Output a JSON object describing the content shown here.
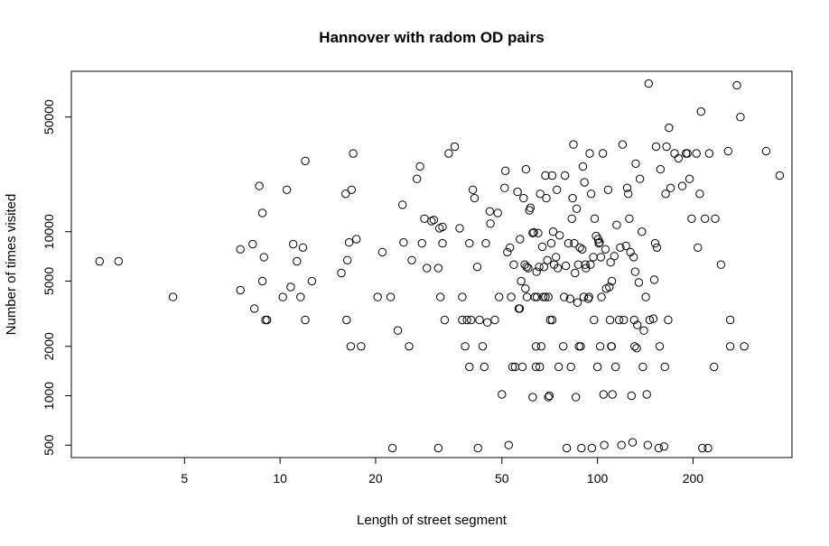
{
  "chart_data": {
    "type": "scatter",
    "title": "Hannover with radom OD pairs",
    "xlabel": "Length of street segment",
    "ylabel": "Number of times visited",
    "x_scale": "log",
    "y_scale": "log",
    "xlim": [
      2.2,
      410
    ],
    "ylim": [
      420,
      95000
    ],
    "x_ticks": [
      5,
      10,
      20,
      50,
      100,
      200
    ],
    "y_ticks": [
      500,
      1000,
      2000,
      5000,
      10000,
      50000
    ],
    "grid": false,
    "legend": "none",
    "marker": "open-circle",
    "points": [
      [
        2.7,
        6600
      ],
      [
        3.1,
        6600
      ],
      [
        4.6,
        4000
      ],
      [
        7.5,
        7800
      ],
      [
        7.5,
        4400
      ],
      [
        8.2,
        8400
      ],
      [
        8.3,
        3400
      ],
      [
        8.6,
        19000
      ],
      [
        8.8,
        5000
      ],
      [
        8.8,
        13000
      ],
      [
        8.9,
        7000
      ],
      [
        9.0,
        2900
      ],
      [
        9.1,
        2900
      ],
      [
        10.2,
        4000
      ],
      [
        10.5,
        18000
      ],
      [
        10.8,
        4600
      ],
      [
        11.0,
        8400
      ],
      [
        11.3,
        6600
      ],
      [
        11.6,
        4000
      ],
      [
        11.8,
        8000
      ],
      [
        12.0,
        2900
      ],
      [
        12.0,
        27000
      ],
      [
        12.6,
        5000
      ],
      [
        15.6,
        5600
      ],
      [
        16.1,
        17000
      ],
      [
        16.2,
        2900
      ],
      [
        16.3,
        6700
      ],
      [
        16.5,
        8600
      ],
      [
        16.7,
        2000
      ],
      [
        16.8,
        18000
      ],
      [
        17.0,
        30000
      ],
      [
        17.4,
        9000
      ],
      [
        18.0,
        2000
      ],
      [
        20.3,
        4000
      ],
      [
        21.0,
        7500
      ],
      [
        22.3,
        4000
      ],
      [
        22.6,
        480
      ],
      [
        23.5,
        2500
      ],
      [
        24.3,
        14600
      ],
      [
        24.5,
        8600
      ],
      [
        25.5,
        2000
      ],
      [
        26.0,
        6700
      ],
      [
        27.0,
        21000
      ],
      [
        27.6,
        25000
      ],
      [
        28.0,
        8500
      ],
      [
        28.5,
        12000
      ],
      [
        29.0,
        6000
      ],
      [
        30.0,
        11600
      ],
      [
        30.5,
        11800
      ],
      [
        31.5,
        6000
      ],
      [
        31.8,
        10500
      ],
      [
        31.5,
        480
      ],
      [
        32.0,
        4000
      ],
      [
        32.5,
        8500
      ],
      [
        32.5,
        10700
      ],
      [
        33.0,
        2900
      ],
      [
        34.0,
        30000
      ],
      [
        35.5,
        33000
      ],
      [
        36.8,
        10500
      ],
      [
        37.5,
        4000
      ],
      [
        37.5,
        2900
      ],
      [
        38.3,
        2000
      ],
      [
        38.8,
        2900
      ],
      [
        39.5,
        8500
      ],
      [
        39.5,
        1500
      ],
      [
        40.0,
        2900
      ],
      [
        40.5,
        18000
      ],
      [
        41.0,
        16000
      ],
      [
        41.8,
        6100
      ],
      [
        42.0,
        480
      ],
      [
        42.5,
        2900
      ],
      [
        43.5,
        2000
      ],
      [
        44.0,
        1500
      ],
      [
        44.5,
        8500
      ],
      [
        45.0,
        2800
      ],
      [
        45.8,
        13300
      ],
      [
        46.0,
        11200
      ],
      [
        47.5,
        2900
      ],
      [
        48.5,
        13000
      ],
      [
        49.0,
        4000
      ],
      [
        50.0,
        1020
      ],
      [
        51.0,
        18500
      ],
      [
        51.3,
        23500
      ],
      [
        52.0,
        7500
      ],
      [
        52.5,
        500
      ],
      [
        53.0,
        8000
      ],
      [
        53.5,
        4000
      ],
      [
        54.0,
        1500
      ],
      [
        54.5,
        6300
      ],
      [
        55.0,
        1500
      ],
      [
        56.0,
        17500
      ],
      [
        56.5,
        3400
      ],
      [
        56.9,
        3400
      ],
      [
        57.0,
        9000
      ],
      [
        57.5,
        5000
      ],
      [
        58.0,
        1500
      ],
      [
        58.5,
        16000
      ],
      [
        59.0,
        6300
      ],
      [
        59.3,
        4500
      ],
      [
        59.5,
        24000
      ],
      [
        59.8,
        6100
      ],
      [
        60.0,
        4000
      ],
      [
        60.5,
        6000
      ],
      [
        61.0,
        13500
      ],
      [
        61.5,
        14000
      ],
      [
        62.5,
        9800
      ],
      [
        62.5,
        980
      ],
      [
        63.0,
        9900
      ],
      [
        63.5,
        4000
      ],
      [
        64.0,
        2000
      ],
      [
        64.0,
        1500
      ],
      [
        64.3,
        5700
      ],
      [
        64.5,
        4000
      ],
      [
        65.0,
        9800
      ],
      [
        65.5,
        6100
      ],
      [
        65.8,
        1500
      ],
      [
        66.0,
        17000
      ],
      [
        66.5,
        2000
      ],
      [
        67.0,
        8100
      ],
      [
        67.5,
        4000
      ],
      [
        67.8,
        6100
      ],
      [
        68.5,
        4000
      ],
      [
        68.5,
        22000
      ],
      [
        69.0,
        16000
      ],
      [
        69.5,
        6700
      ],
      [
        70.0,
        4000
      ],
      [
        70.0,
        980
      ],
      [
        70.5,
        1000
      ],
      [
        71.0,
        2900
      ],
      [
        71.5,
        8500
      ],
      [
        72.0,
        22000
      ],
      [
        72.0,
        2900
      ],
      [
        72.5,
        10000
      ],
      [
        73.0,
        6300
      ],
      [
        74.0,
        7000
      ],
      [
        74.5,
        18000
      ],
      [
        75.0,
        6000
      ],
      [
        75.5,
        1500
      ],
      [
        76.0,
        9500
      ],
      [
        78.0,
        2000
      ],
      [
        78.5,
        4000
      ],
      [
        79.0,
        22000
      ],
      [
        79.5,
        6200
      ],
      [
        80.0,
        480
      ],
      [
        81.0,
        8500
      ],
      [
        82.0,
        3900
      ],
      [
        82.5,
        1500
      ],
      [
        83.0,
        12000
      ],
      [
        83.5,
        16000
      ],
      [
        84.0,
        34000
      ],
      [
        84.5,
        8500
      ],
      [
        85.0,
        5600
      ],
      [
        85.5,
        980
      ],
      [
        86.0,
        13800
      ],
      [
        86.5,
        3700
      ],
      [
        87.0,
        6300
      ],
      [
        87.5,
        2000
      ],
      [
        88.0,
        8000
      ],
      [
        88.5,
        2000
      ],
      [
        89.0,
        480
      ],
      [
        89.5,
        7800
      ],
      [
        90.0,
        25000
      ],
      [
        90.5,
        4000
      ],
      [
        91.0,
        20000
      ],
      [
        91.5,
        6300
      ],
      [
        92.0,
        6000
      ],
      [
        93.5,
        3900
      ],
      [
        94.0,
        4000
      ],
      [
        94.5,
        30000
      ],
      [
        95.0,
        6300
      ],
      [
        95.5,
        17000
      ],
      [
        96.0,
        480
      ],
      [
        97.0,
        7000
      ],
      [
        97.5,
        2900
      ],
      [
        98.0,
        12000
      ],
      [
        99.0,
        9400
      ],
      [
        100.0,
        1500
      ],
      [
        100.5,
        9000
      ],
      [
        101.0,
        8500
      ],
      [
        101.5,
        8600
      ],
      [
        102.0,
        2000
      ],
      [
        102.5,
        7000
      ],
      [
        103.0,
        4000
      ],
      [
        104.0,
        30000
      ],
      [
        104.5,
        1020
      ],
      [
        105.0,
        500
      ],
      [
        106.0,
        7800
      ],
      [
        106.5,
        4500
      ],
      [
        108.0,
        18000
      ],
      [
        109.0,
        4600
      ],
      [
        109.5,
        2900
      ],
      [
        110.0,
        6500
      ],
      [
        110.5,
        2000
      ],
      [
        110.8,
        2000
      ],
      [
        111.0,
        5000
      ],
      [
        111.5,
        1020
      ],
      [
        113.0,
        7100
      ],
      [
        114.0,
        1500
      ],
      [
        115.0,
        11000
      ],
      [
        117.0,
        2900
      ],
      [
        118.0,
        8000
      ],
      [
        119.0,
        500
      ],
      [
        120.0,
        34000
      ],
      [
        121.0,
        2900
      ],
      [
        123.0,
        8200
      ],
      [
        124.0,
        18500
      ],
      [
        125.0,
        17000
      ],
      [
        126.0,
        12000
      ],
      [
        127.0,
        7500
      ],
      [
        128.0,
        1000
      ],
      [
        129.0,
        520
      ],
      [
        130.0,
        7000
      ],
      [
        130.5,
        2900
      ],
      [
        131.0,
        2000
      ],
      [
        131.5,
        5700
      ],
      [
        132.0,
        26000
      ],
      [
        133.0,
        1950
      ],
      [
        133.5,
        2700
      ],
      [
        135.0,
        4900
      ],
      [
        136.0,
        21000
      ],
      [
        138.0,
        10000
      ],
      [
        139.0,
        1500
      ],
      [
        140.0,
        2500
      ],
      [
        142.0,
        4000
      ],
      [
        143.0,
        1020
      ],
      [
        144.0,
        500
      ],
      [
        145.0,
        80000
      ],
      [
        146.0,
        2900
      ],
      [
        150.0,
        2950
      ],
      [
        151.0,
        5100
      ],
      [
        152.0,
        8500
      ],
      [
        153.0,
        33000
      ],
      [
        154.0,
        8000
      ],
      [
        156.0,
        480
      ],
      [
        157.0,
        2000
      ],
      [
        158.0,
        24000
      ],
      [
        162.0,
        490
      ],
      [
        163.0,
        1500
      ],
      [
        164.0,
        17000
      ],
      [
        165.0,
        33000
      ],
      [
        167.0,
        2900
      ],
      [
        168.0,
        43000
      ],
      [
        170.0,
        18500
      ],
      [
        175.0,
        30000
      ],
      [
        180.0,
        28000
      ],
      [
        185.0,
        19000
      ],
      [
        190.0,
        30000
      ],
      [
        192.0,
        30000
      ],
      [
        195.0,
        21000
      ],
      [
        198.0,
        12000
      ],
      [
        205.0,
        30000
      ],
      [
        207.0,
        8000
      ],
      [
        210.0,
        17000
      ],
      [
        212.0,
        54000
      ],
      [
        214.0,
        480
      ],
      [
        218.0,
        12000
      ],
      [
        223.0,
        480
      ],
      [
        225.0,
        30000
      ],
      [
        233.0,
        1500
      ],
      [
        235.0,
        12000
      ],
      [
        245.0,
        6300
      ],
      [
        258.0,
        31000
      ],
      [
        262.0,
        2900
      ],
      [
        262.0,
        2000
      ],
      [
        275.0,
        78000
      ],
      [
        282.0,
        50000
      ],
      [
        290.0,
        2000
      ],
      [
        340.0,
        31000
      ],
      [
        375.0,
        22000
      ]
    ]
  }
}
